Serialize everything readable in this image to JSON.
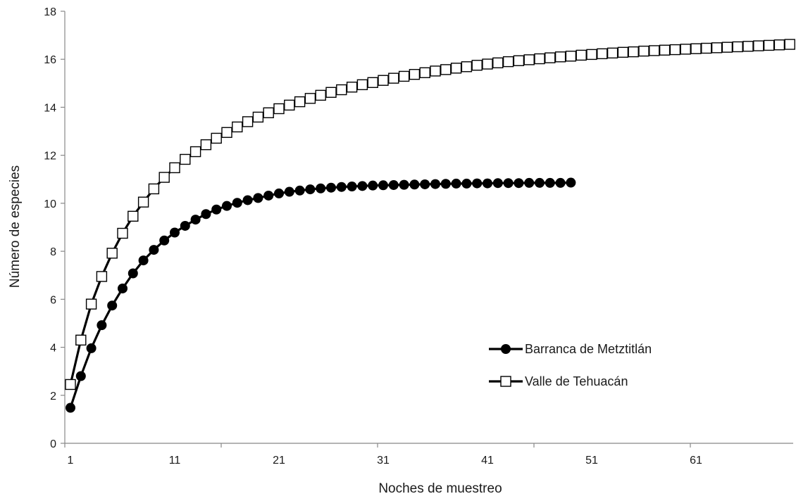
{
  "chart_data": {
    "type": "line",
    "title": "",
    "xlabel": "Noches de muestreo",
    "ylabel": "Número de especies",
    "xlim": [
      1,
      70
    ],
    "ylim": [
      0,
      18
    ],
    "x_tick_labels": [
      "1",
      "11",
      "21",
      "31",
      "41",
      "51",
      "61"
    ],
    "x_tick_values": [
      1,
      11,
      21,
      31,
      41,
      51,
      61
    ],
    "y_tick_labels": [
      "0",
      "2",
      "4",
      "6",
      "8",
      "10",
      "12",
      "14",
      "16",
      "18"
    ],
    "y_tick_values": [
      0,
      2,
      4,
      6,
      8,
      10,
      12,
      14,
      16,
      18
    ],
    "grid": false,
    "legend_position": "bottom-right",
    "series": [
      {
        "name": "Barranca de Metztitlán",
        "marker": "filled-circle",
        "color": "#000000",
        "x_start": 1,
        "values": [
          1.48,
          2.8,
          3.96,
          4.92,
          5.74,
          6.45,
          7.08,
          7.62,
          8.06,
          8.45,
          8.78,
          9.06,
          9.32,
          9.55,
          9.74,
          9.89,
          10.02,
          10.13,
          10.22,
          10.32,
          10.41,
          10.48,
          10.53,
          10.58,
          10.62,
          10.65,
          10.68,
          10.7,
          10.72,
          10.74,
          10.75,
          10.76,
          10.77,
          10.78,
          10.79,
          10.8,
          10.81,
          10.82,
          10.82,
          10.83,
          10.83,
          10.84,
          10.84,
          10.84,
          10.85,
          10.85,
          10.85,
          10.85,
          10.86
        ]
      },
      {
        "name": "Valle de Tehuacán",
        "marker": "open-square",
        "color": "#000000",
        "x_start": 1,
        "values": [
          2.45,
          4.3,
          5.8,
          6.95,
          7.92,
          8.75,
          9.46,
          10.05,
          10.6,
          11.08,
          11.48,
          11.83,
          12.15,
          12.44,
          12.71,
          12.95,
          13.18,
          13.4,
          13.59,
          13.77,
          13.94,
          14.09,
          14.23,
          14.37,
          14.5,
          14.62,
          14.73,
          14.84,
          14.94,
          15.03,
          15.12,
          15.21,
          15.29,
          15.37,
          15.44,
          15.51,
          15.57,
          15.63,
          15.69,
          15.75,
          15.8,
          15.85,
          15.9,
          15.94,
          15.98,
          16.02,
          16.06,
          16.1,
          16.13,
          16.17,
          16.2,
          16.23,
          16.26,
          16.29,
          16.31,
          16.34,
          16.36,
          16.38,
          16.4,
          16.42,
          16.44,
          16.46,
          16.48,
          16.5,
          16.52,
          16.54,
          16.56,
          16.58,
          16.6,
          16.62
        ]
      }
    ]
  }
}
